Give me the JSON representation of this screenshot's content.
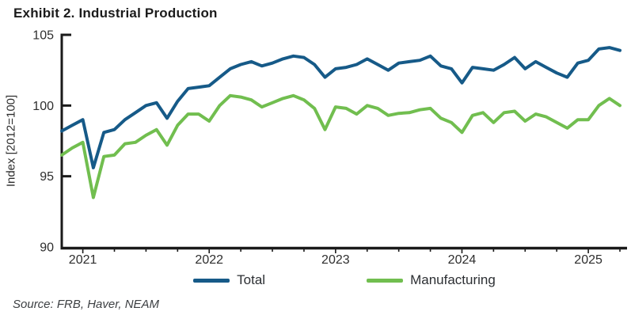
{
  "page": {
    "source": "Source: FRB, Haver, NEAM"
  },
  "chart_data": {
    "type": "line",
    "title": "Exhibit 2. Industrial Production",
    "ylabel": "Index [2012=100]",
    "xlabel": "",
    "ylim": [
      90,
      105
    ],
    "yticks": [
      90,
      95,
      100,
      105
    ],
    "xtick_labels": [
      "2021",
      "2022",
      "2023",
      "2024",
      "2025"
    ],
    "grid": false,
    "legend_position": "bottom",
    "axis_color": "#1a1a1a",
    "text_color": "#2e2e2e",
    "months": [
      "2020-11",
      "2020-12",
      "2021-01",
      "2021-02",
      "2021-03",
      "2021-04",
      "2021-05",
      "2021-06",
      "2021-07",
      "2021-08",
      "2021-09",
      "2021-10",
      "2021-11",
      "2021-12",
      "2022-01",
      "2022-02",
      "2022-03",
      "2022-04",
      "2022-05",
      "2022-06",
      "2022-07",
      "2022-08",
      "2022-09",
      "2022-10",
      "2022-11",
      "2022-12",
      "2023-01",
      "2023-02",
      "2023-03",
      "2023-04",
      "2023-05",
      "2023-06",
      "2023-07",
      "2023-08",
      "2023-09",
      "2023-10",
      "2023-11",
      "2023-12",
      "2024-01",
      "2024-02",
      "2024-03",
      "2024-04",
      "2024-05",
      "2024-06",
      "2024-07",
      "2024-08",
      "2024-09",
      "2024-10",
      "2024-11",
      "2024-12",
      "2025-01",
      "2025-02",
      "2025-03",
      "2025-04"
    ],
    "series": [
      {
        "name": "Total",
        "color": "#165a88",
        "values": [
          98.2,
          98.6,
          99.0,
          95.6,
          98.1,
          98.3,
          99.0,
          99.5,
          100.0,
          100.2,
          99.1,
          100.3,
          101.2,
          101.3,
          101.4,
          102.0,
          102.6,
          102.9,
          103.1,
          102.8,
          103.0,
          103.3,
          103.5,
          103.4,
          102.9,
          102.0,
          102.6,
          102.7,
          102.9,
          103.3,
          102.9,
          102.5,
          103.0,
          103.1,
          103.2,
          103.5,
          102.8,
          102.6,
          101.6,
          102.7,
          102.6,
          102.5,
          102.9,
          103.4,
          102.6,
          103.1,
          102.7,
          102.3,
          102.0,
          103.0,
          103.2,
          104.0,
          104.1,
          103.9
        ]
      },
      {
        "name": "Manufacturing",
        "color": "#71be4f",
        "values": [
          96.5,
          97.0,
          97.4,
          93.5,
          96.4,
          96.5,
          97.3,
          97.4,
          97.9,
          98.3,
          97.2,
          98.6,
          99.4,
          99.4,
          98.9,
          100.0,
          100.7,
          100.6,
          100.4,
          99.9,
          100.2,
          100.5,
          100.7,
          100.4,
          99.8,
          98.3,
          99.9,
          99.8,
          99.4,
          100.0,
          99.8,
          99.3,
          99.45,
          99.5,
          99.7,
          99.8,
          99.1,
          98.8,
          98.1,
          99.3,
          99.5,
          98.8,
          99.5,
          99.6,
          98.9,
          99.4,
          99.2,
          98.8,
          98.4,
          99.0,
          99.0,
          100.0,
          100.5,
          100.0
        ]
      }
    ]
  }
}
